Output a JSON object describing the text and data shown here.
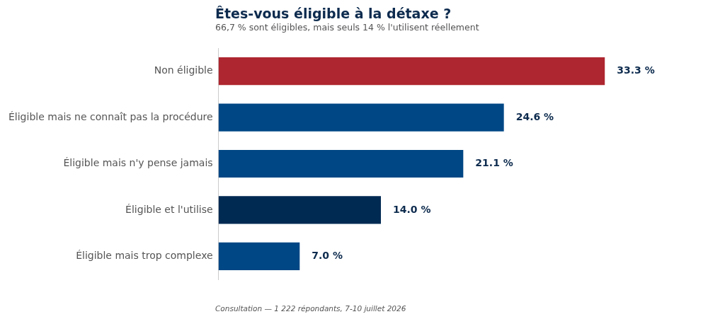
{
  "chart_data": {
    "type": "bar",
    "orientation": "horizontal",
    "title": "Êtes-vous éligible à la détaxe ?",
    "subtitle": "66,7 % sont éligibles, mais seuls 14 % l'utilisent réellement",
    "categories": [
      "Non éligible",
      "Éligible mais ne connaît pas la procédure",
      "Éligible mais n'y pense jamais",
      "Éligible et l'utilise",
      "Éligible mais trop complexe"
    ],
    "values": [
      33.3,
      24.6,
      21.1,
      14.0,
      7.0
    ],
    "colors": [
      "#ae262f",
      "#004785",
      "#004785",
      "#002a52",
      "#004785"
    ],
    "value_labels": [
      "33.3 %",
      "24.6 %",
      "21.1 %",
      "14.0 %",
      "7.0 %"
    ],
    "annotations": [
      "Consultation — 1 222 répondants, 7-10 juillet 2026"
    ],
    "grid": false,
    "legend": false
  }
}
